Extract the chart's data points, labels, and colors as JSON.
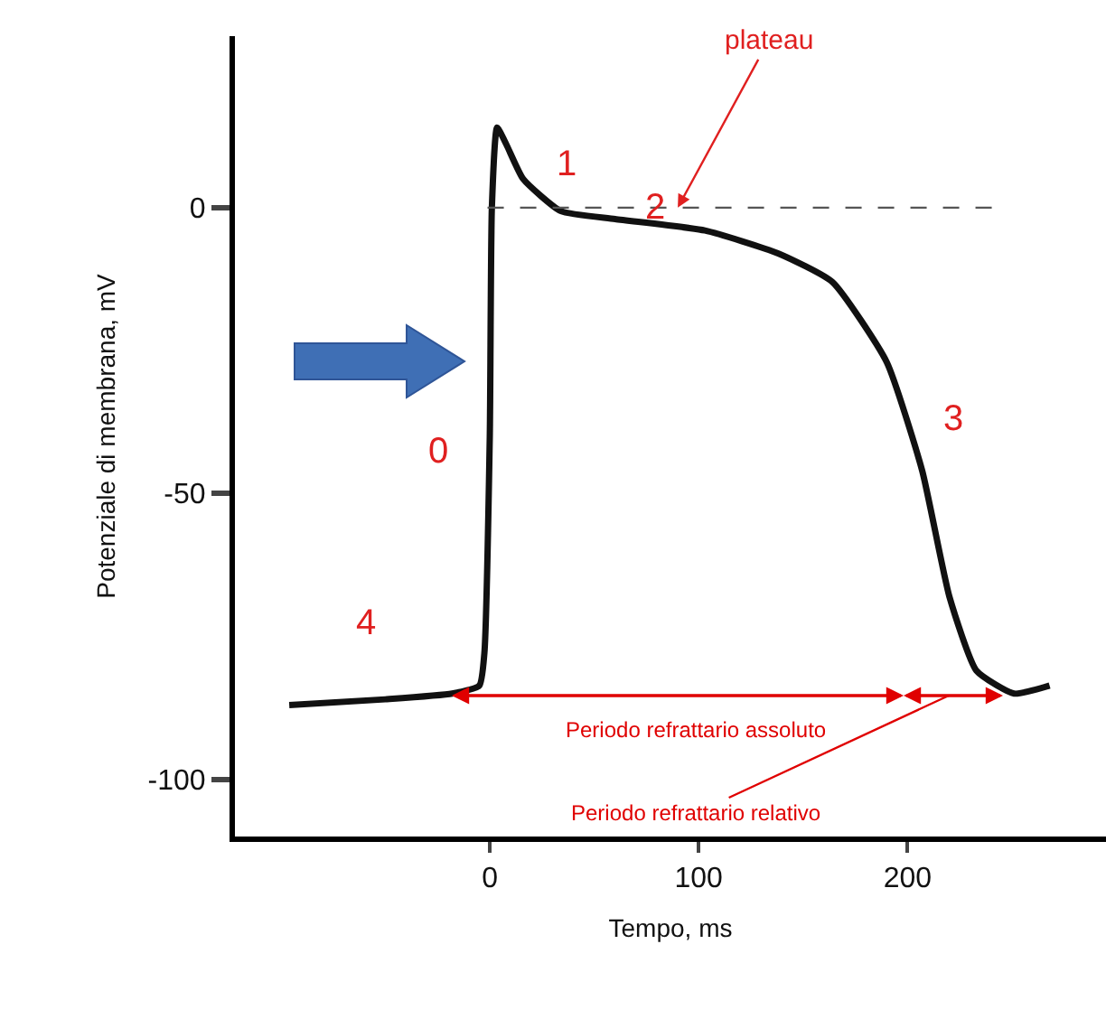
{
  "chart_data": {
    "type": "line",
    "xlabel": "Tempo, ms",
    "ylabel": "Potenziale di membrana, mV",
    "x": [
      -96,
      -50,
      -18,
      -5,
      -2.6,
      0,
      1,
      3.5,
      8,
      16,
      34,
      60,
      103,
      138,
      164,
      190,
      207,
      220,
      233,
      251,
      268
    ],
    "series": [
      {
        "color": "#111111",
        "values": [
          -87,
          -86,
          -85,
          -83.6,
          -78,
          -40,
          0,
          14,
          11,
          5,
          -0.6,
          -2,
          -4,
          -8,
          -13,
          -27,
          -46,
          -68,
          -81,
          -85,
          -83.6
        ]
      }
    ],
    "xlim": [
      -122,
      295
    ],
    "ylim": [
      -110,
      30
    ],
    "xticks": [
      0,
      100,
      200
    ],
    "yticks": [
      0,
      -50,
      -100
    ],
    "marker": "none",
    "line_style": "solid",
    "ref_lines": [
      {
        "axis": "y",
        "value": 0,
        "color": "#555555",
        "line_style": "dashed"
      }
    ],
    "annotations": [
      {
        "text": "plateau",
        "x": 90,
        "y": 0
      },
      "1",
      {
        "text": "2",
        "x": 79,
        "y": 0
      },
      "3",
      "0",
      "4",
      "Periodo refrattario assoluto",
      "Periodo refrattario relativo"
    ]
  }
}
